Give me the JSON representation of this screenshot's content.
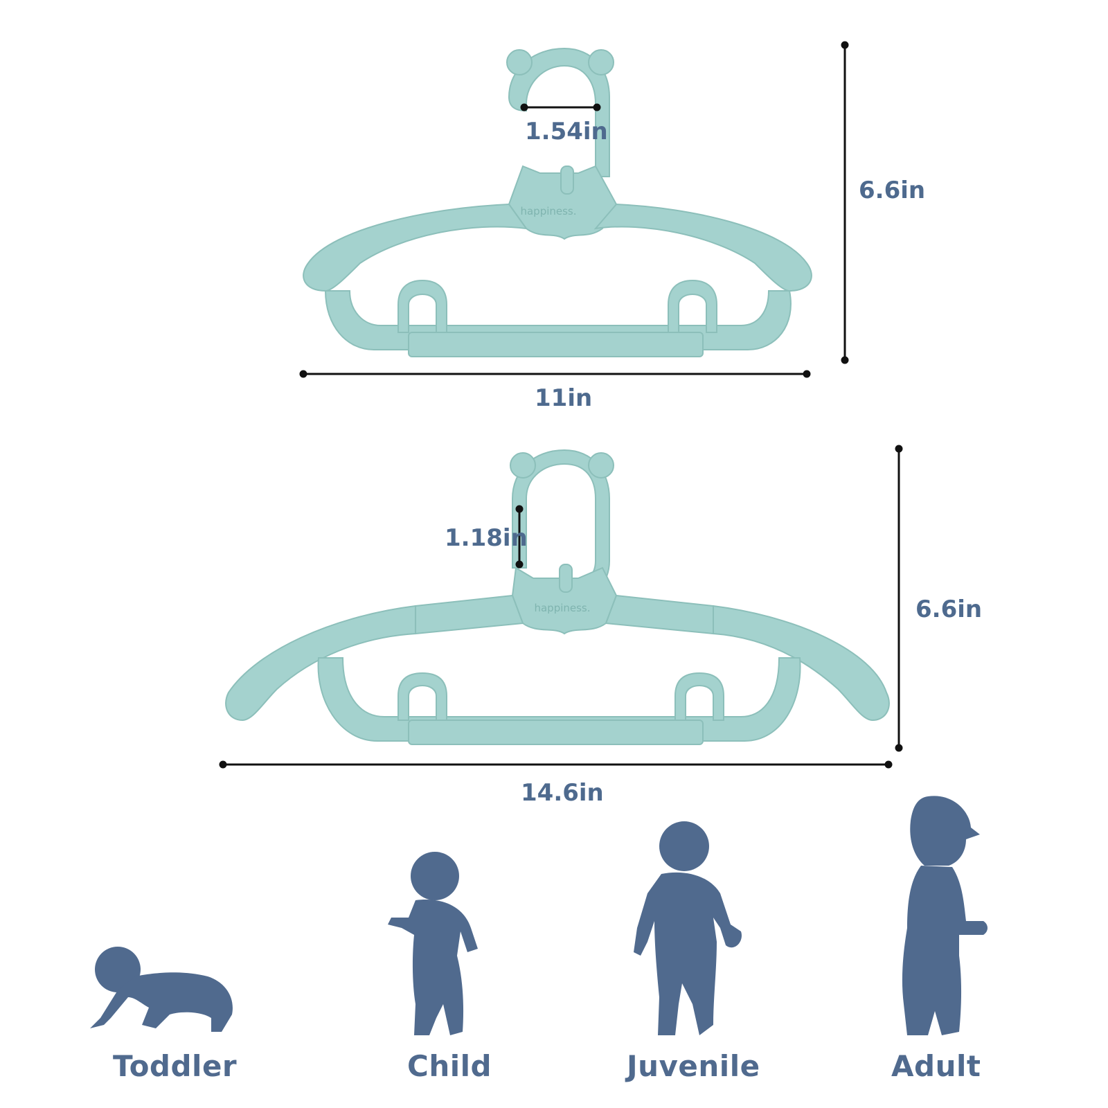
{
  "hanger_top": {
    "hook_width": "1.54in",
    "height": "6.6in",
    "width": "11in",
    "brand": "happiness."
  },
  "hanger_bottom": {
    "hook_height": "1.18in",
    "height": "6.6in",
    "width": "14.6in",
    "brand": "happiness."
  },
  "sizes": [
    "Toddler",
    "Child",
    "Juvenile",
    "Adult"
  ],
  "colors": {
    "hanger": "#a4d2ce",
    "hanger_shade": "#8cbfba",
    "silhouette": "#506a8e",
    "text": "#4e6a8e"
  }
}
